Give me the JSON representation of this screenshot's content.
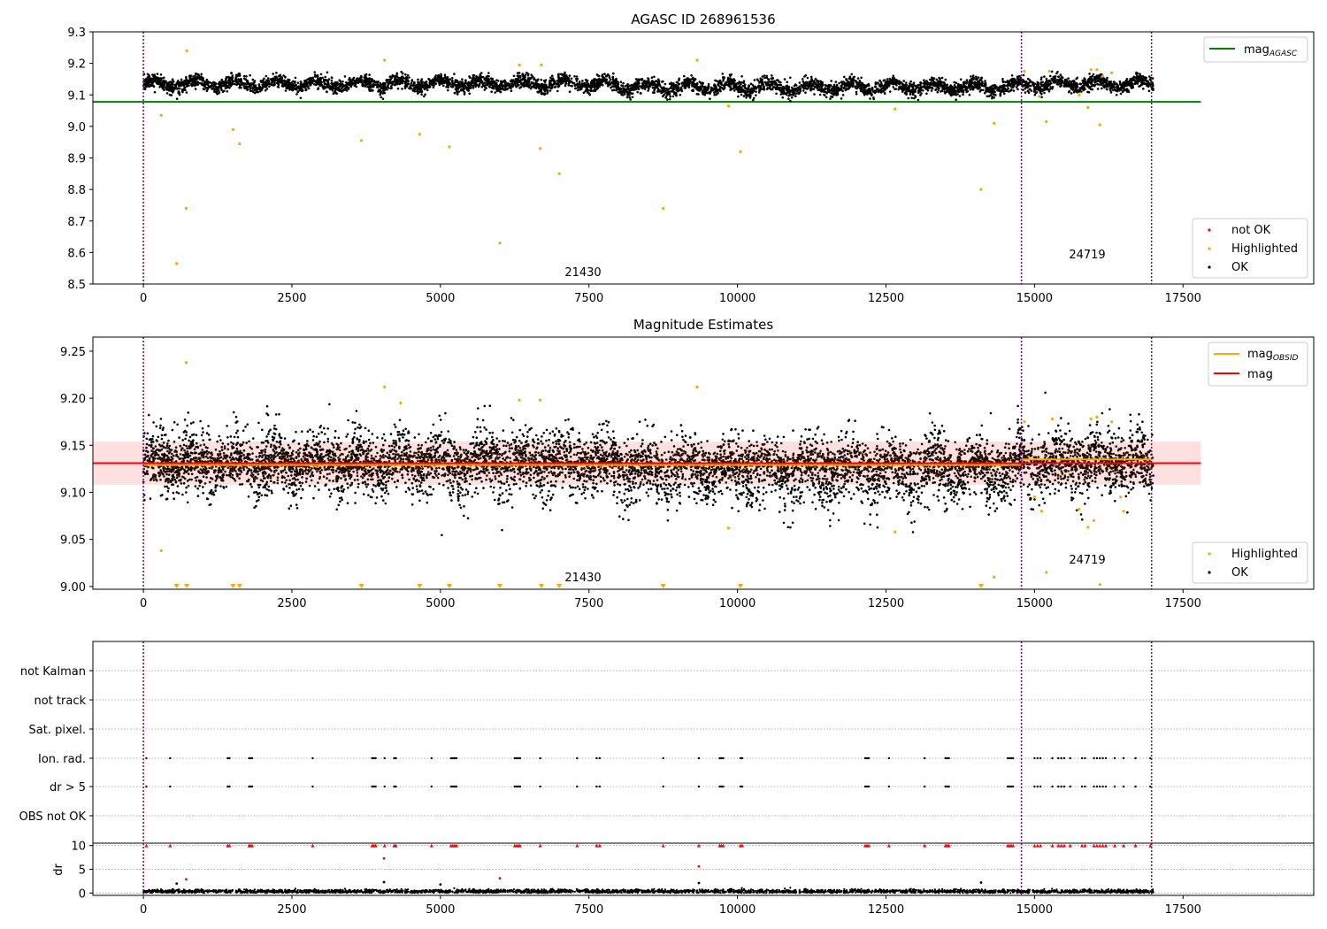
{
  "chart_data": [
    {
      "type": "scatter",
      "title": "AGASC ID 268961536",
      "xlim": [
        -850,
        19700
      ],
      "ylim": [
        8.5,
        9.3
      ],
      "xticks": [
        0,
        2500,
        5000,
        7500,
        10000,
        12500,
        15000,
        17500
      ],
      "yticks": [
        8.5,
        8.6,
        8.7,
        8.8,
        8.9,
        9.0,
        9.1,
        9.2,
        9.3
      ],
      "series_ok": {
        "name": "OK",
        "color": "#000000",
        "x_range": [
          0,
          17000
        ],
        "mean": 9.135,
        "std": 0.022
      },
      "highlighted": {
        "name": "Highlighted",
        "color": "#ffa500",
        "x": [
          300,
          560,
          720,
          730,
          1510,
          1620,
          3670,
          4060,
          4650,
          5150,
          6000,
          6330,
          6680,
          6700,
          7000,
          8750,
          9320,
          9850,
          10050,
          12650,
          14100,
          14320,
          14830,
          15080,
          15200,
          15250,
          15750,
          15900,
          15950,
          16050,
          16100,
          16150,
          16300
        ],
        "y": [
          9.035,
          8.565,
          8.74,
          9.24,
          8.99,
          8.945,
          8.955,
          9.21,
          8.975,
          8.935,
          8.63,
          9.195,
          8.93,
          9.195,
          8.85,
          8.74,
          9.21,
          9.065,
          8.92,
          9.055,
          8.8,
          9.01,
          9.175,
          9.095,
          9.015,
          9.175,
          9.1,
          9.06,
          9.18,
          9.18,
          9.005,
          9.16,
          9.17
        ]
      },
      "not_ok": {
        "name": "not OK",
        "color": "#ff0000"
      },
      "mag_agasc": {
        "label_main": "mag",
        "label_sub": "AGASC",
        "value": 9.078,
        "color": "#008000"
      },
      "vlines": [
        0,
        14780,
        16970
      ],
      "annotations": [
        {
          "text": "21430",
          "x": 7430,
          "y": 8.535
        },
        {
          "text": "24719",
          "x": 15850,
          "y": 8.585
        }
      ],
      "legend_upper": "upper right",
      "legend_lower": "lower right"
    },
    {
      "type": "scatter",
      "title": "Magnitude Estimates",
      "xlim": [
        -850,
        19700
      ],
      "ylim": [
        8.997,
        9.265
      ],
      "xticks": [
        0,
        2500,
        5000,
        7500,
        10000,
        12500,
        15000,
        17500
      ],
      "yticks": [
        9.0,
        9.05,
        9.1,
        9.15,
        9.2,
        9.25
      ],
      "yticklabels": [
        "9.00",
        "9.05",
        "9.10",
        "9.15",
        "9.20",
        "9.25"
      ],
      "series_ok": {
        "name": "OK",
        "color": "#000000",
        "x_range": [
          0,
          17000
        ],
        "mean": 9.131,
        "std": 0.022
      },
      "highlighted": {
        "name": "Highlighted",
        "color": "#ffa500",
        "x": [
          300,
          720,
          4060,
          4330,
          6330,
          6680,
          9320,
          9850,
          12650,
          14320,
          14830,
          15000,
          15120,
          15200,
          15300,
          15750,
          15900,
          15950,
          16000,
          16050,
          16100,
          16300,
          16450,
          16500
        ],
        "y": [
          9.038,
          9.238,
          9.212,
          9.195,
          9.198,
          9.198,
          9.212,
          9.062,
          9.058,
          9.01,
          9.175,
          9.095,
          9.08,
          9.015,
          9.178,
          9.082,
          9.063,
          9.178,
          9.07,
          9.18,
          9.002,
          9.175,
          9.095,
          9.08
        ]
      },
      "highlighted_below": {
        "x": [
          560,
          730,
          1510,
          1620,
          3670,
          4650,
          5150,
          6000,
          6700,
          7000,
          8750,
          10050,
          14100
        ]
      },
      "mag_obsid": {
        "label_main": "mag",
        "label_sub": "OBSID",
        "color": "#ffa500",
        "segments": [
          {
            "x": [
              0,
              14780
            ],
            "value": 9.129
          },
          {
            "x": [
              14780,
              17000
            ],
            "value": 9.135
          }
        ]
      },
      "mag": {
        "label": "mag",
        "value": 9.131,
        "band": [
          9.108,
          9.154
        ],
        "color": "#ff0000"
      },
      "vlines": [
        0,
        14780,
        16970
      ],
      "annotations": [
        {
          "text": "21430",
          "x": 7430,
          "y": 9.008
        },
        {
          "text": "24719",
          "x": 15850,
          "y": 9.026
        }
      ],
      "legend_upper": "upper right",
      "legend_lower": "lower right"
    },
    {
      "type": "scatter",
      "title": "",
      "xlim": [
        -850,
        19700
      ],
      "categories": [
        "not Kalman",
        "not track",
        "Sat. pixel.",
        "Ion. rad.",
        "dr > 5",
        "OBS not OK"
      ],
      "flag_x": [
        50,
        450,
        1420,
        1450,
        1780,
        1800,
        1830,
        2850,
        3850,
        3880,
        3910,
        4060,
        4220,
        4250,
        4850,
        5180,
        5210,
        5240,
        5270,
        6250,
        6280,
        6310,
        6340,
        6680,
        7300,
        7630,
        7680,
        8750,
        9350,
        9700,
        9730,
        9760,
        10050,
        10080,
        12150,
        12180,
        12210,
        12550,
        13150,
        13500,
        13530,
        13560,
        14550,
        14580,
        14610,
        14640,
        15000,
        15050,
        15100,
        15300,
        15400,
        15450,
        15500,
        15600,
        15800,
        15850,
        16000,
        16050,
        16100,
        16150,
        16200,
        16350,
        16500,
        16700,
        16950
      ],
      "not_kalman_x": [
        16970
      ],
      "vlines": [
        0,
        14780,
        16970
      ]
    },
    {
      "type": "scatter",
      "title": "",
      "ylabel": "dr",
      "xlim": [
        -850,
        19700
      ],
      "ylim": [
        -0.5,
        10.5
      ],
      "xticks": [
        0,
        2500,
        5000,
        7500,
        10000,
        12500,
        15000,
        17500
      ],
      "yticks": [
        0,
        5,
        10
      ],
      "dr_outliers": [
        {
          "x": 4050,
          "y": 7.3
        },
        {
          "x": 9350,
          "y": 5.6
        },
        {
          "x": 720,
          "y": 2.9
        },
        {
          "x": 6000,
          "y": 3.1
        },
        {
          "x": 14100,
          "y": 2.2
        },
        {
          "x": 9350,
          "y": 2.1
        },
        {
          "x": 4050,
          "y": 2.3
        },
        {
          "x": 560,
          "y": 2.0
        },
        {
          "x": 5000,
          "y": 1.8
        }
      ],
      "vlines": [
        0,
        14780,
        16970
      ]
    }
  ]
}
